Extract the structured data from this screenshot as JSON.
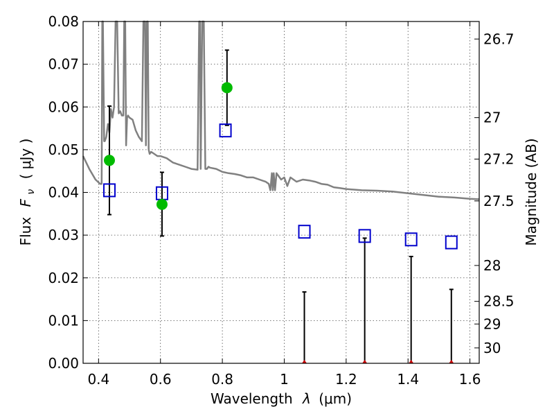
{
  "chart_data": {
    "type": "scatter",
    "title": "",
    "xlabel_text": "Wavelength",
    "xlabel_symbol": "λ",
    "xlabel_unit": "(μm)",
    "ylabel_text": "Flux",
    "ylabel_symbol": "F",
    "ylabel_sub": "ν",
    "ylabel_unit": "( μJy )",
    "y2label": "Magnitude (AB)",
    "xlim": [
      0.35,
      1.63
    ],
    "ylim": [
      0.0,
      0.08
    ],
    "grid": true,
    "x_ticks": [
      {
        "value": 0.4,
        "label": "0.4"
      },
      {
        "value": 0.6,
        "label": "0.6"
      },
      {
        "value": 0.8,
        "label": "0.8"
      },
      {
        "value": 1.0,
        "label": "1"
      },
      {
        "value": 1.2,
        "label": "1.2"
      },
      {
        "value": 1.4,
        "label": "1.4"
      },
      {
        "value": 1.6,
        "label": "1.6"
      }
    ],
    "y_ticks": [
      {
        "value": 0.0,
        "label": "0.00"
      },
      {
        "value": 0.01,
        "label": "0.01"
      },
      {
        "value": 0.02,
        "label": "0.02"
      },
      {
        "value": 0.03,
        "label": "0.03"
      },
      {
        "value": 0.04,
        "label": "0.04"
      },
      {
        "value": 0.05,
        "label": "0.05"
      },
      {
        "value": 0.06,
        "label": "0.06"
      },
      {
        "value": 0.07,
        "label": "0.07"
      },
      {
        "value": 0.08,
        "label": "0.08"
      }
    ],
    "y2_ticks": [
      {
        "flux": 0.0759,
        "label": "26.7"
      },
      {
        "flux": 0.0575,
        "label": "27"
      },
      {
        "flux": 0.0478,
        "label": "27.2"
      },
      {
        "flux": 0.038,
        "label": "27.5"
      },
      {
        "flux": 0.0229,
        "label": "28"
      },
      {
        "flux": 0.0145,
        "label": "28.5"
      },
      {
        "flux": 0.0092,
        "label": "29"
      },
      {
        "flux": 0.0036,
        "label": "30"
      }
    ],
    "series": [
      {
        "name": "model spectrum",
        "kind": "line",
        "color": "#808080",
        "x": [
          0.35,
          0.37,
          0.39,
          0.405,
          0.41,
          0.412,
          0.414,
          0.418,
          0.42,
          0.425,
          0.43,
          0.435,
          0.44,
          0.445,
          0.45,
          0.455,
          0.46,
          0.465,
          0.47,
          0.475,
          0.48,
          0.483,
          0.486,
          0.489,
          0.492,
          0.495,
          0.5,
          0.51,
          0.52,
          0.53,
          0.54,
          0.545,
          0.55,
          0.553,
          0.556,
          0.559,
          0.562,
          0.565,
          0.57,
          0.58,
          0.59,
          0.6,
          0.62,
          0.64,
          0.66,
          0.68,
          0.7,
          0.72,
          0.725,
          0.728,
          0.73,
          0.735,
          0.74,
          0.745,
          0.75,
          0.755,
          0.76,
          0.78,
          0.8,
          0.82,
          0.84,
          0.86,
          0.88,
          0.9,
          0.92,
          0.94,
          0.95,
          0.955,
          0.96,
          0.963,
          0.966,
          0.97,
          0.975,
          0.98,
          0.99,
          1.0,
          1.01,
          1.02,
          1.04,
          1.06,
          1.08,
          1.1,
          1.12,
          1.14,
          1.16,
          1.18,
          1.2,
          1.25,
          1.3,
          1.35,
          1.4,
          1.45,
          1.5,
          1.55,
          1.6,
          1.63
        ],
        "y": [
          0.0485,
          0.0455,
          0.043,
          0.042,
          0.042,
          0.08,
          0.08,
          0.052,
          0.052,
          0.053,
          0.056,
          0.054,
          0.0595,
          0.0575,
          0.06,
          0.08,
          0.08,
          0.0585,
          0.059,
          0.058,
          0.058,
          0.08,
          0.08,
          0.051,
          0.0575,
          0.058,
          0.0575,
          0.057,
          0.0545,
          0.053,
          0.052,
          0.08,
          0.08,
          0.051,
          0.08,
          0.08,
          0.05,
          0.049,
          0.0495,
          0.049,
          0.0485,
          0.0485,
          0.048,
          0.047,
          0.0465,
          0.046,
          0.0455,
          0.0453,
          0.08,
          0.08,
          0.0455,
          0.08,
          0.08,
          0.0455,
          0.0455,
          0.046,
          0.0458,
          0.0455,
          0.0448,
          0.0445,
          0.0443,
          0.044,
          0.0435,
          0.0435,
          0.043,
          0.0425,
          0.042,
          0.0405,
          0.0445,
          0.0405,
          0.0445,
          0.0405,
          0.0445,
          0.044,
          0.043,
          0.0435,
          0.0415,
          0.0435,
          0.0425,
          0.043,
          0.0428,
          0.0425,
          0.042,
          0.0418,
          0.0412,
          0.041,
          0.0408,
          0.0405,
          0.0404,
          0.0402,
          0.0398,
          0.0394,
          0.039,
          0.0388,
          0.0385,
          0.0384
        ]
      },
      {
        "name": "model magnitudes",
        "kind": "open-square",
        "color": "#0000cc",
        "x": [
          0.435,
          0.605,
          0.81,
          1.065,
          1.26,
          1.41,
          1.54
        ],
        "y": [
          0.0405,
          0.0398,
          0.0545,
          0.0308,
          0.0298,
          0.029,
          0.0283
        ]
      },
      {
        "name": "observed fluxes",
        "kind": "filled-circle",
        "color": "#00bb00",
        "x": [
          0.435,
          0.605,
          0.815
        ],
        "y": [
          0.0475,
          0.0372,
          0.0645
        ]
      },
      {
        "name": "upper limits",
        "kind": "marker",
        "color": "#cc0000",
        "x": [
          1.065,
          1.26,
          1.41,
          1.54
        ],
        "y": [
          0.0,
          0.0,
          0.0,
          0.0
        ]
      }
    ],
    "errorbars": [
      {
        "x": 0.435,
        "low": 0.0348,
        "high": 0.0602
      },
      {
        "x": 0.605,
        "low": 0.0298,
        "high": 0.0447
      },
      {
        "x": 0.815,
        "low": 0.0557,
        "high": 0.0733
      },
      {
        "x": 1.065,
        "low": 0.0,
        "high": 0.0167
      },
      {
        "x": 1.26,
        "low": 0.0,
        "high": 0.0293
      },
      {
        "x": 1.41,
        "low": 0.0,
        "high": 0.025
      },
      {
        "x": 1.54,
        "low": 0.0,
        "high": 0.0173
      }
    ]
  }
}
